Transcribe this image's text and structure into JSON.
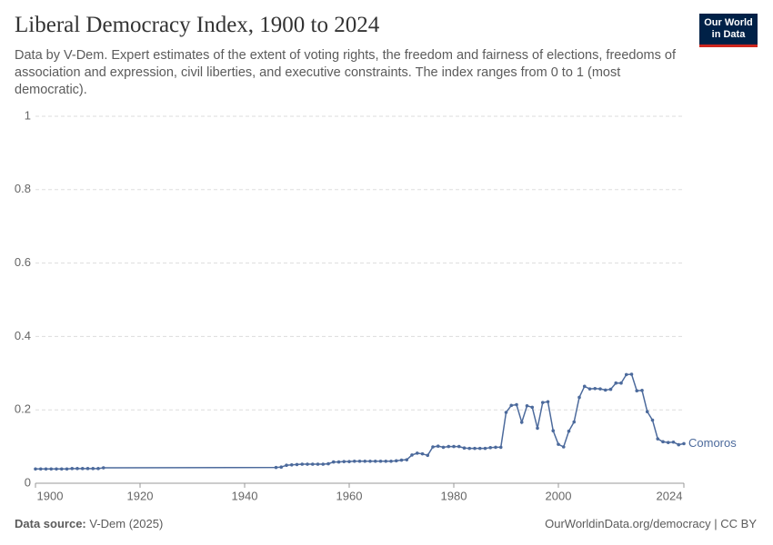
{
  "logo": {
    "line1": "Our World",
    "line2": "in Data"
  },
  "chart_data": {
    "type": "line",
    "title": "Liberal Democracy Index, 1900 to 2024",
    "subtitle": "Data by V-Dem. Expert estimates of the extent of voting rights, the freedom and fairness of elections, freedoms of association and expression, civil liberties, and executive constraints. The index ranges from 0 to 1 (most democratic).",
    "x": [
      1900,
      1901,
      1902,
      1903,
      1904,
      1905,
      1906,
      1907,
      1908,
      1909,
      1910,
      1911,
      1912,
      1913,
      1946,
      1947,
      1948,
      1949,
      1950,
      1951,
      1952,
      1953,
      1954,
      1955,
      1956,
      1957,
      1958,
      1959,
      1960,
      1961,
      1962,
      1963,
      1964,
      1965,
      1966,
      1967,
      1968,
      1969,
      1970,
      1971,
      1972,
      1973,
      1974,
      1975,
      1976,
      1977,
      1978,
      1979,
      1980,
      1981,
      1982,
      1983,
      1984,
      1985,
      1986,
      1987,
      1988,
      1989,
      1990,
      1991,
      1992,
      1993,
      1994,
      1995,
      1996,
      1997,
      1998,
      1999,
      2000,
      2001,
      2002,
      2003,
      2004,
      2005,
      2006,
      2007,
      2008,
      2009,
      2010,
      2011,
      2012,
      2013,
      2014,
      2015,
      2016,
      2017,
      2018,
      2019,
      2020,
      2021,
      2022,
      2023,
      2024
    ],
    "series": [
      {
        "name": "Comoros",
        "color": "#4c6a9c",
        "values": [
          0.039,
          0.039,
          0.039,
          0.039,
          0.039,
          0.039,
          0.039,
          0.04,
          0.04,
          0.04,
          0.04,
          0.04,
          0.04,
          0.042,
          0.043,
          0.044,
          0.049,
          0.05,
          0.051,
          0.052,
          0.052,
          0.052,
          0.052,
          0.052,
          0.053,
          0.058,
          0.058,
          0.059,
          0.059,
          0.06,
          0.06,
          0.06,
          0.06,
          0.06,
          0.06,
          0.06,
          0.06,
          0.061,
          0.063,
          0.064,
          0.077,
          0.082,
          0.08,
          0.076,
          0.099,
          0.101,
          0.098,
          0.1,
          0.1,
          0.1,
          0.096,
          0.095,
          0.095,
          0.095,
          0.095,
          0.097,
          0.098,
          0.098,
          0.193,
          0.212,
          0.214,
          0.166,
          0.211,
          0.207,
          0.15,
          0.22,
          0.222,
          0.143,
          0.106,
          0.099,
          0.142,
          0.167,
          0.234,
          0.264,
          0.257,
          0.258,
          0.257,
          0.254,
          0.256,
          0.273,
          0.273,
          0.296,
          0.297,
          0.252,
          0.253,
          0.195,
          0.172,
          0.121,
          0.113,
          0.111,
          0.112,
          0.105,
          0.108
        ]
      }
    ],
    "xlim": [
      1900,
      2024
    ],
    "xticks": [
      1900,
      1920,
      1940,
      1960,
      1980,
      2000,
      2024
    ],
    "ylim": [
      0,
      1
    ],
    "yticks": [
      0,
      0.2,
      0.4,
      0.6,
      0.8,
      1
    ],
    "grid": true,
    "source_label": "Data source:",
    "source": "V-Dem (2025)",
    "footer_right": "OurWorldinData.org/democracy | CC BY"
  }
}
